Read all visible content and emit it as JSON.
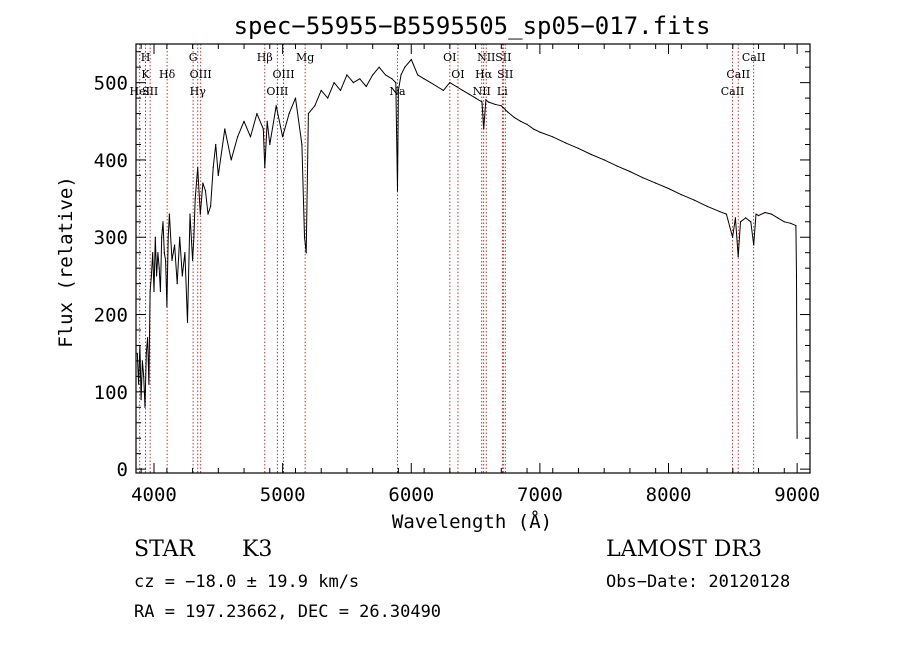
{
  "chart_data": {
    "type": "line",
    "title": "spec−55955−B5595505_sp05−017.fits",
    "xlabel": "Wavelength (Å)",
    "ylabel": "Flux (relative)",
    "xlim": [
      3860,
      9100
    ],
    "ylim": [
      -5,
      550
    ],
    "xticks": [
      4000,
      5000,
      6000,
      7000,
      8000,
      9000
    ],
    "yticks": [
      0,
      100,
      200,
      300,
      400,
      500
    ],
    "line_color": "#000000",
    "marker_color": "#b22222",
    "series": [
      {
        "name": "flux",
        "x": [
          3870,
          3880,
          3890,
          3900,
          3910,
          3920,
          3930,
          3940,
          3950,
          3960,
          3970,
          3980,
          3990,
          4000,
          4010,
          4020,
          4030,
          4040,
          4050,
          4060,
          4070,
          4080,
          4090,
          4100,
          4110,
          4120,
          4140,
          4160,
          4180,
          4200,
          4220,
          4240,
          4260,
          4280,
          4300,
          4310,
          4320,
          4340,
          4360,
          4380,
          4400,
          4420,
          4440,
          4460,
          4480,
          4500,
          4550,
          4600,
          4650,
          4700,
          4750,
          4800,
          4850,
          4861,
          4880,
          4900,
          4950,
          5000,
          5050,
          5100,
          5150,
          5170,
          5183,
          5200,
          5250,
          5300,
          5350,
          5400,
          5450,
          5500,
          5550,
          5600,
          5650,
          5700,
          5750,
          5800,
          5850,
          5880,
          5893,
          5900,
          5920,
          5950,
          6000,
          6050,
          6100,
          6150,
          6200,
          6250,
          6300,
          6350,
          6400,
          6450,
          6500,
          6550,
          6563,
          6580,
          6600,
          6650,
          6700,
          6750,
          6800,
          6850,
          6900,
          6950,
          7000,
          7100,
          7200,
          7300,
          7400,
          7500,
          7600,
          7700,
          7800,
          7900,
          8000,
          8100,
          8200,
          8300,
          8400,
          8450,
          8498,
          8520,
          8542,
          8560,
          8600,
          8640,
          8662,
          8680,
          8700,
          8750,
          8800,
          8850,
          8900,
          8950,
          8990,
          8995,
          9000
        ],
        "y": [
          150,
          110,
          160,
          90,
          140,
          120,
          80,
          150,
          170,
          110,
          230,
          250,
          280,
          230,
          300,
          250,
          280,
          260,
          230,
          300,
          320,
          280,
          270,
          210,
          300,
          330,
          270,
          290,
          240,
          300,
          250,
          280,
          190,
          330,
          270,
          300,
          350,
          390,
          330,
          370,
          360,
          330,
          340,
          390,
          420,
          380,
          440,
          400,
          430,
          450,
          430,
          460,
          440,
          390,
          450,
          420,
          470,
          430,
          460,
          480,
          420,
          300,
          280,
          460,
          470,
          490,
          480,
          500,
          490,
          510,
          500,
          505,
          495,
          510,
          520,
          510,
          505,
          500,
          360,
          490,
          510,
          520,
          530,
          510,
          505,
          500,
          495,
          490,
          500,
          495,
          490,
          485,
          480,
          475,
          440,
          478,
          475,
          472,
          470,
          462,
          455,
          450,
          446,
          440,
          436,
          430,
          422,
          415,
          407,
          400,
          392,
          385,
          377,
          370,
          363,
          355,
          348,
          340,
          333,
          330,
          300,
          325,
          275,
          320,
          325,
          320,
          290,
          330,
          328,
          332,
          330,
          325,
          320,
          318,
          315,
          250,
          40
        ]
      }
    ],
    "lines": [
      {
        "label": "H",
        "wavelength": 3934,
        "row": 0
      },
      {
        "label": "K",
        "wavelength": 3934,
        "row": 1
      },
      {
        "label": "HeI",
        "wavelength": 3889,
        "row": 2
      },
      {
        "label": "SII",
        "wavelength": 3970,
        "row": 2
      },
      {
        "label": "Hδ",
        "wavelength": 4102,
        "row": 1
      },
      {
        "label": "G",
        "wavelength": 4304,
        "row": 0
      },
      {
        "label": "OIII",
        "wavelength": 4363,
        "row": 1
      },
      {
        "label": "Hγ",
        "wavelength": 4340,
        "row": 2
      },
      {
        "label": "Hβ",
        "wavelength": 4861,
        "row": 0
      },
      {
        "label": "OIII",
        "wavelength": 5007,
        "row": 1
      },
      {
        "label": "OIII",
        "wavelength": 4959,
        "row": 2
      },
      {
        "label": "Mg",
        "wavelength": 5175,
        "row": 0
      },
      {
        "label": "Na",
        "wavelength": 5893,
        "row": 2
      },
      {
        "label": "OI",
        "wavelength": 6300,
        "row": 0
      },
      {
        "label": "OI",
        "wavelength": 6363,
        "row": 1
      },
      {
        "label": "NII",
        "wavelength": 6583,
        "row": 0
      },
      {
        "label": "SII",
        "wavelength": 6716,
        "row": 0
      },
      {
        "label": "Hα",
        "wavelength": 6563,
        "row": 1
      },
      {
        "label": "SII",
        "wavelength": 6731,
        "row": 1
      },
      {
        "label": "NII",
        "wavelength": 6548,
        "row": 2
      },
      {
        "label": "Li",
        "wavelength": 6708,
        "row": 2
      },
      {
        "label": "CaII",
        "wavelength": 8662,
        "row": 0
      },
      {
        "label": "CaII",
        "wavelength": 8542,
        "row": 1
      },
      {
        "label": "CaII",
        "wavelength": 8498,
        "row": 2
      }
    ]
  },
  "info": {
    "class_label": "STAR",
    "subclass": "K3",
    "survey": "LAMOST DR3",
    "cz": "cz = −18.0 ± 19.9 km/s",
    "obs_date": "Obs−Date: 20120128",
    "coords": "RA = 197.23662, DEC =  26.30490"
  }
}
